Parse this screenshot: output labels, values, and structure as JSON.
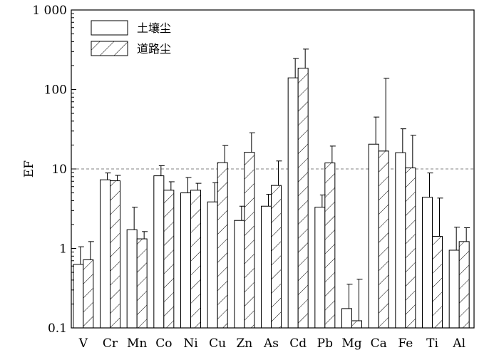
{
  "chart_data": {
    "type": "bar",
    "title": "",
    "xlabel": "",
    "ylabel": "EF",
    "yscale": "log",
    "ylim": [
      0.1,
      1000
    ],
    "yticks": [
      "0.1",
      "1",
      "10",
      "100",
      "1 000"
    ],
    "reference_line": {
      "value": 10,
      "style": "dashed",
      "color": "#808080"
    },
    "legend_position": "top-left",
    "categories": [
      "V",
      "Cr",
      "Mn",
      "Co",
      "Ni",
      "Cu",
      "Zn",
      "As",
      "Cd",
      "Pb",
      "Mg",
      "Ca",
      "Fe",
      "Ti",
      "Al"
    ],
    "series": [
      {
        "name": "土壤尘",
        "fill": "plain",
        "values": [
          0.63,
          7.3,
          1.72,
          8.2,
          5.0,
          3.85,
          2.25,
          3.4,
          140,
          3.3,
          0.175,
          20.5,
          16.0,
          4.4,
          0.95
        ],
        "error_upper": [
          1.05,
          8.9,
          3.3,
          11.0,
          7.8,
          6.7,
          3.4,
          4.8,
          245,
          4.7,
          0.355,
          45,
          32,
          8.9,
          1.85
        ]
      },
      {
        "name": "道路尘",
        "fill": "hatched",
        "values": [
          0.72,
          7.1,
          1.32,
          5.4,
          5.4,
          12.0,
          16.2,
          6.2,
          185,
          11.9,
          0.123,
          16.8,
          10.3,
          1.42,
          1.22
        ],
        "error_upper": [
          1.22,
          8.3,
          1.63,
          6.9,
          6.6,
          19.7,
          28.5,
          12.6,
          322,
          19.4,
          0.41,
          138,
          26.5,
          4.3,
          1.82
        ]
      }
    ]
  }
}
